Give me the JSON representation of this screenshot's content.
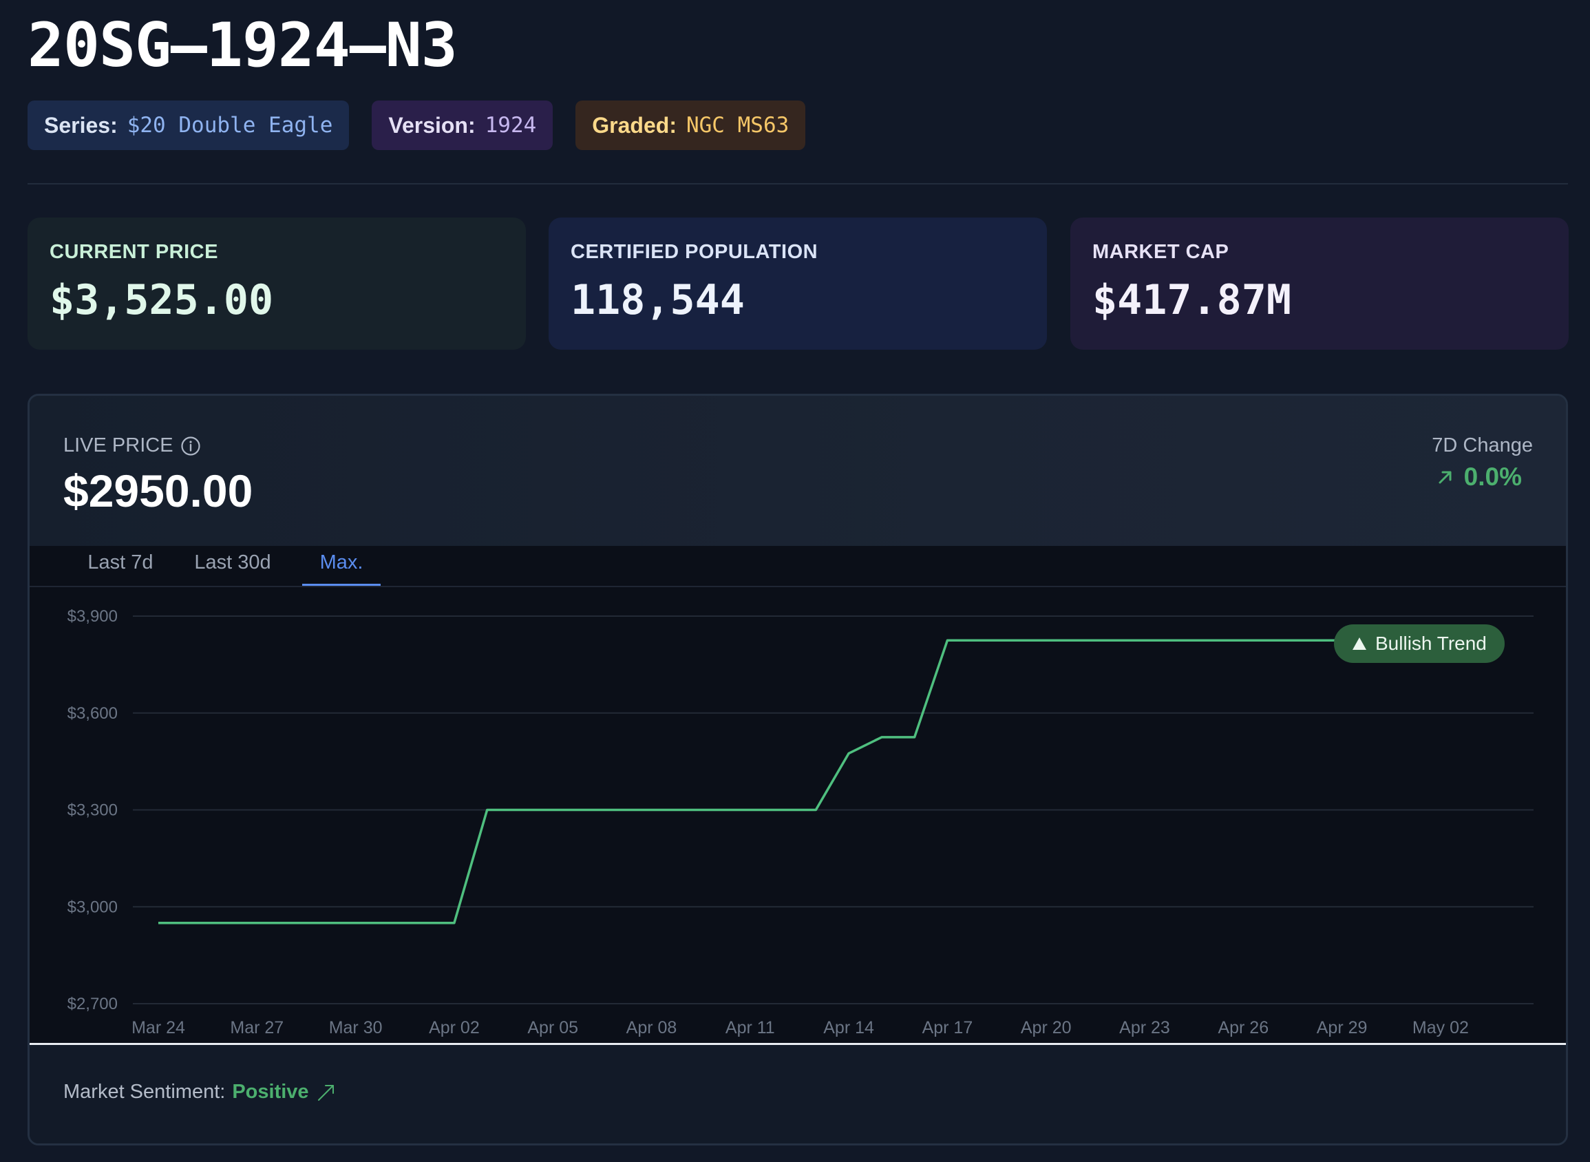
{
  "title": "20SG–1924–N3",
  "badges": {
    "series": {
      "key": "Series:",
      "value": "$20 Double Eagle"
    },
    "version": {
      "key": "Version:",
      "value": "1924"
    },
    "graded": {
      "key": "Graded:",
      "value": "NGC MS63"
    }
  },
  "stats": {
    "current_price": {
      "label": "CURRENT PRICE",
      "value": "$3,525.00"
    },
    "certified_population": {
      "label": "CERTIFIED POPULATION",
      "value": "118,544"
    },
    "market_cap": {
      "label": "MARKET CAP",
      "value": "$417.87M"
    }
  },
  "live": {
    "label": "LIVE PRICE",
    "value": "$2950.00",
    "change_label": "7D Change",
    "change_value": "0.0%"
  },
  "tabs": [
    {
      "label": "Last 7d",
      "active": false
    },
    {
      "label": "Last 30d",
      "active": false
    },
    {
      "label": "Max.",
      "active": true
    }
  ],
  "trend_badge": "Bullish Trend",
  "sentiment": {
    "label": "Market Sentiment:",
    "value": "Positive"
  },
  "colors": {
    "line": "#4fbf7f",
    "positive": "#4caf6e",
    "accent": "#5b8def",
    "trend_badge_bg": "#2c5f3c"
  },
  "icons": [
    "info-icon",
    "arrow-ne-icon",
    "triangle-up-icon",
    "trend-up-icon"
  ],
  "chart_data": {
    "type": "line",
    "y_ticks": [
      "$3,900",
      "$3,600",
      "$3,300",
      "$3,000",
      "$2,700"
    ],
    "x_ticks": [
      "Mar 24",
      "Mar 27",
      "Mar 30",
      "Apr 02",
      "Apr 05",
      "Apr 08",
      "Apr 11",
      "Apr 14",
      "Apr 17",
      "Apr 20",
      "Apr 23",
      "Apr 26",
      "Apr 29",
      "May 02"
    ],
    "ylim": [
      2700,
      3900
    ],
    "grid": true,
    "series": [
      {
        "x": [
          "Mar 24",
          "Apr 02",
          "Apr 03",
          "Apr 13",
          "Apr 14",
          "Apr 15",
          "Apr 16",
          "Apr 17",
          "Apr 29"
        ],
        "values": [
          2950,
          2950,
          3300,
          3300,
          3475,
          3525,
          3525,
          3825,
          3825
        ]
      }
    ]
  }
}
